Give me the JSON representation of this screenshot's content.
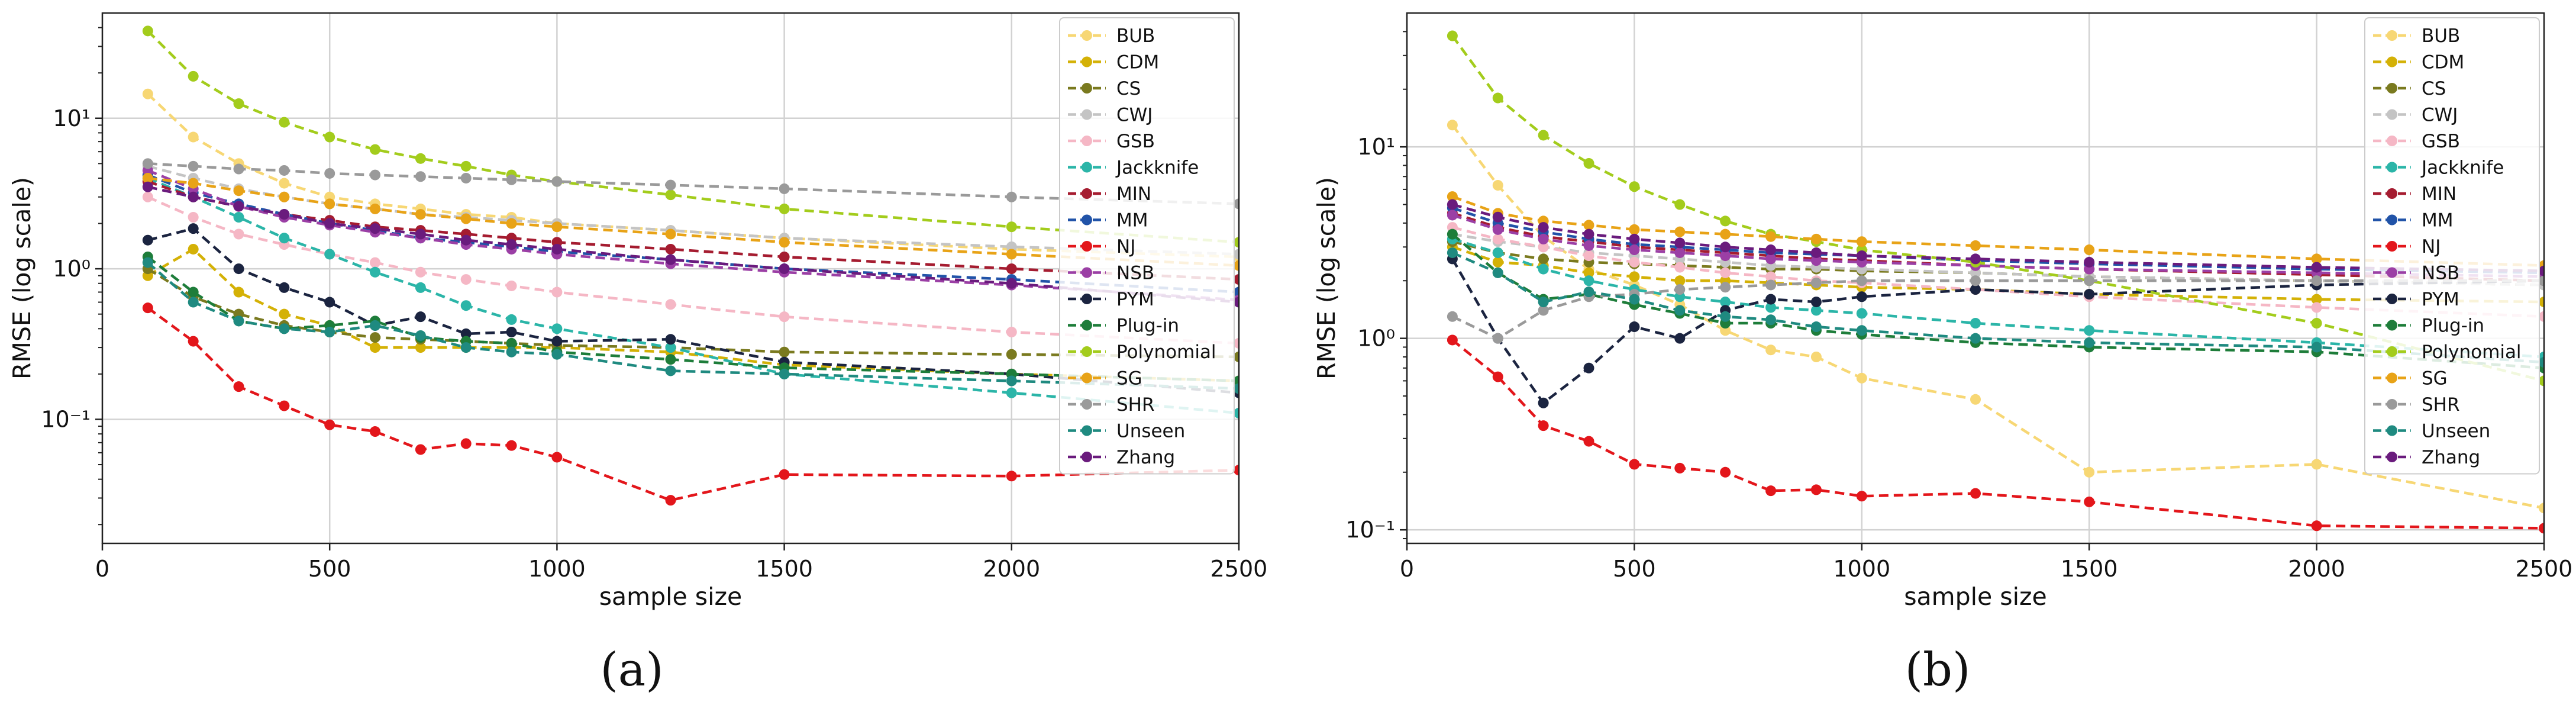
{
  "figure": {
    "caption_a": "(a)",
    "caption_b": "(b)"
  },
  "chart_data": [
    {
      "panel": "(a)",
      "type": "line",
      "xlabel": "sample size",
      "ylabel": "RMSE (log scale)",
      "yscale": "log",
      "xlim": [
        0,
        2500
      ],
      "ylim": [
        0.015,
        50
      ],
      "xticks": [
        0,
        500,
        1000,
        1500,
        2000,
        2500
      ],
      "xtick_labels": [
        "0",
        "500",
        "1000",
        "1500",
        "2000",
        "2500"
      ],
      "yticks": [
        0.1,
        1,
        10
      ],
      "ytick_labels": [
        "10⁻¹",
        "10⁰",
        "10¹"
      ],
      "grid": true,
      "legend": "top-right",
      "x": [
        100,
        200,
        300,
        400,
        500,
        600,
        700,
        800,
        900,
        1000,
        1250,
        1500,
        2000,
        2500
      ],
      "series": [
        {
          "name": "BUB",
          "color": "#f7d774",
          "values": [
            14.5,
            7.5,
            5.0,
            3.7,
            3.0,
            2.7,
            2.5,
            2.3,
            2.2,
            2.0,
            1.8,
            1.6,
            1.35,
            1.2
          ]
        },
        {
          "name": "CDM",
          "color": "#d4b106",
          "values": [
            0.9,
            1.35,
            0.7,
            0.5,
            0.42,
            0.3,
            0.3,
            0.3,
            0.3,
            0.3,
            0.28,
            0.23,
            0.2,
            0.18
          ]
        },
        {
          "name": "CS",
          "color": "#7a7a1f",
          "values": [
            1.0,
            0.65,
            0.5,
            0.42,
            0.38,
            0.35,
            0.34,
            0.33,
            0.32,
            0.31,
            0.3,
            0.28,
            0.27,
            0.26
          ]
        },
        {
          "name": "CWJ",
          "color": "#c4c4c4",
          "values": [
            4.8,
            4.0,
            3.4,
            3.0,
            2.7,
            2.5,
            2.3,
            2.2,
            2.1,
            2.0,
            1.8,
            1.6,
            1.4,
            1.25
          ]
        },
        {
          "name": "GSB",
          "color": "#f5b7c5",
          "values": [
            3.0,
            2.2,
            1.7,
            1.45,
            1.25,
            1.1,
            0.95,
            0.85,
            0.77,
            0.7,
            0.58,
            0.48,
            0.38,
            0.32
          ]
        },
        {
          "name": "Jackknife",
          "color": "#2bb5a8",
          "values": [
            4.0,
            3.0,
            2.2,
            1.6,
            1.25,
            0.95,
            0.75,
            0.57,
            0.46,
            0.4,
            0.3,
            0.2,
            0.15,
            0.11
          ]
        },
        {
          "name": "MIN",
          "color": "#a51c30",
          "values": [
            3.8,
            3.0,
            2.6,
            2.3,
            2.1,
            1.9,
            1.8,
            1.7,
            1.6,
            1.5,
            1.35,
            1.2,
            1.0,
            0.85
          ]
        },
        {
          "name": "MM",
          "color": "#2153a8",
          "values": [
            4.2,
            3.2,
            2.7,
            2.3,
            2.0,
            1.8,
            1.6,
            1.5,
            1.4,
            1.3,
            1.15,
            1.0,
            0.85,
            0.7
          ]
        },
        {
          "name": "NJ",
          "color": "#e3161b",
          "values": [
            0.55,
            0.33,
            0.165,
            0.123,
            0.092,
            0.083,
            0.063,
            0.069,
            0.067,
            0.056,
            0.029,
            0.043,
            0.042,
            0.046
          ]
        },
        {
          "name": "NSB",
          "color": "#9b3fa5",
          "values": [
            4.5,
            3.4,
            2.6,
            2.2,
            1.95,
            1.75,
            1.6,
            1.45,
            1.35,
            1.25,
            1.08,
            0.95,
            0.78,
            0.62
          ]
        },
        {
          "name": "PYM",
          "color": "#1b2440",
          "values": [
            1.55,
            1.85,
            1.0,
            0.75,
            0.6,
            0.42,
            0.48,
            0.37,
            0.38,
            0.33,
            0.34,
            0.24,
            0.2,
            0.15
          ]
        },
        {
          "name": "Plug-in",
          "color": "#1e7d3a",
          "values": [
            1.2,
            0.7,
            0.45,
            0.4,
            0.42,
            0.45,
            0.35,
            0.33,
            0.32,
            0.28,
            0.25,
            0.22,
            0.2,
            0.18
          ]
        },
        {
          "name": "Polynomial",
          "color": "#a3cc1c",
          "values": [
            38.0,
            19.0,
            12.5,
            9.4,
            7.5,
            6.2,
            5.4,
            4.8,
            4.2,
            3.8,
            3.1,
            2.5,
            1.9,
            1.5
          ]
        },
        {
          "name": "SG",
          "color": "#e8a317",
          "values": [
            4.0,
            3.7,
            3.3,
            3.0,
            2.7,
            2.5,
            2.3,
            2.15,
            2.0,
            1.9,
            1.7,
            1.5,
            1.25,
            1.05
          ]
        },
        {
          "name": "SHR",
          "color": "#9a9a9a",
          "values": [
            5.0,
            4.8,
            4.6,
            4.5,
            4.3,
            4.2,
            4.1,
            4.0,
            3.9,
            3.8,
            3.6,
            3.4,
            3.0,
            2.7
          ]
        },
        {
          "name": "Unseen",
          "color": "#1f8a80",
          "values": [
            1.1,
            0.6,
            0.45,
            0.4,
            0.38,
            0.42,
            0.36,
            0.3,
            0.28,
            0.27,
            0.21,
            0.2,
            0.18,
            0.16
          ]
        },
        {
          "name": "Zhang",
          "color": "#6a1b7d",
          "values": [
            3.5,
            3.0,
            2.6,
            2.3,
            2.0,
            1.85,
            1.7,
            1.55,
            1.45,
            1.35,
            1.15,
            1.0,
            0.8,
            0.6
          ]
        }
      ]
    },
    {
      "panel": "(b)",
      "type": "line",
      "xlabel": "sample size",
      "ylabel": "RMSE (log scale)",
      "yscale": "log",
      "xlim": [
        0,
        2500
      ],
      "ylim": [
        0.085,
        50
      ],
      "xticks": [
        0,
        500,
        1000,
        1500,
        2000,
        2500
      ],
      "xtick_labels": [
        "0",
        "500",
        "1000",
        "1500",
        "2000",
        "2500"
      ],
      "yticks": [
        0.1,
        1,
        10
      ],
      "ytick_labels": [
        "10⁻¹",
        "10⁰",
        "10¹"
      ],
      "grid": true,
      "legend": "top-right",
      "x": [
        100,
        200,
        300,
        400,
        500,
        600,
        700,
        800,
        900,
        1000,
        1250,
        1500,
        2000,
        2500
      ],
      "series": [
        {
          "name": "BUB",
          "color": "#f7d774",
          "values": [
            13.0,
            6.3,
            3.4,
            2.3,
            1.9,
            1.5,
            1.1,
            0.87,
            0.8,
            0.62,
            0.48,
            0.2,
            0.22,
            0.13
          ]
        },
        {
          "name": "CDM",
          "color": "#d4b106",
          "values": [
            3.0,
            2.5,
            2.4,
            2.2,
            2.1,
            2.0,
            2.0,
            1.95,
            1.9,
            1.85,
            1.8,
            1.7,
            1.6,
            1.55
          ]
        },
        {
          "name": "CS",
          "color": "#7a7a1f",
          "values": [
            3.2,
            2.8,
            2.6,
            2.5,
            2.45,
            2.4,
            2.35,
            2.3,
            2.3,
            2.25,
            2.2,
            2.1,
            2.0,
            1.9
          ]
        },
        {
          "name": "CWJ",
          "color": "#c4c4c4",
          "values": [
            3.5,
            3.2,
            3.0,
            2.8,
            2.7,
            2.6,
            2.5,
            2.4,
            2.35,
            2.3,
            2.2,
            2.1,
            2.0,
            1.9
          ]
        },
        {
          "name": "GSB",
          "color": "#f5b7c5",
          "values": [
            3.8,
            3.3,
            3.0,
            2.7,
            2.5,
            2.35,
            2.2,
            2.1,
            2.0,
            1.95,
            1.8,
            1.65,
            1.45,
            1.3
          ]
        },
        {
          "name": "Jackknife",
          "color": "#2bb5a8",
          "values": [
            3.3,
            2.8,
            2.3,
            2.0,
            1.8,
            1.65,
            1.55,
            1.45,
            1.4,
            1.35,
            1.2,
            1.1,
            0.95,
            0.8
          ]
        },
        {
          "name": "MIN",
          "color": "#a51c30",
          "values": [
            4.5,
            3.8,
            3.4,
            3.2,
            3.0,
            2.9,
            2.8,
            2.7,
            2.6,
            2.55,
            2.4,
            2.3,
            2.15,
            2.0
          ]
        },
        {
          "name": "MM",
          "color": "#2153a8",
          "values": [
            4.8,
            4.0,
            3.6,
            3.3,
            3.1,
            3.0,
            2.9,
            2.8,
            2.75,
            2.7,
            2.55,
            2.45,
            2.3,
            2.2
          ]
        },
        {
          "name": "NJ",
          "color": "#e3161b",
          "values": [
            0.98,
            0.63,
            0.35,
            0.29,
            0.22,
            0.21,
            0.2,
            0.16,
            0.162,
            0.15,
            0.155,
            0.14,
            0.105,
            0.102
          ]
        },
        {
          "name": "NSB",
          "color": "#9b3fa5",
          "values": [
            4.4,
            3.7,
            3.3,
            3.05,
            2.9,
            2.8,
            2.7,
            2.6,
            2.55,
            2.5,
            2.4,
            2.3,
            2.2,
            2.1
          ]
        },
        {
          "name": "PYM",
          "color": "#1b2440",
          "values": [
            2.6,
            1.0,
            0.46,
            0.7,
            1.15,
            1.0,
            1.4,
            1.6,
            1.55,
            1.65,
            1.8,
            1.7,
            1.9,
            2.0
          ]
        },
        {
          "name": "Plug-in",
          "color": "#1e7d3a",
          "values": [
            3.5,
            2.2,
            1.6,
            1.7,
            1.5,
            1.35,
            1.2,
            1.2,
            1.1,
            1.05,
            0.95,
            0.9,
            0.85,
            0.7
          ]
        },
        {
          "name": "Polynomial",
          "color": "#a3cc1c",
          "values": [
            38.0,
            18.0,
            11.5,
            8.2,
            6.2,
            5.0,
            4.1,
            3.5,
            3.2,
            2.9,
            2.5,
            2.0,
            1.2,
            0.6
          ]
        },
        {
          "name": "SG",
          "color": "#e8a317",
          "values": [
            5.5,
            4.5,
            4.1,
            3.9,
            3.7,
            3.6,
            3.5,
            3.4,
            3.3,
            3.2,
            3.05,
            2.9,
            2.6,
            2.4
          ]
        },
        {
          "name": "SHR",
          "color": "#9a9a9a",
          "values": [
            1.3,
            1.0,
            1.4,
            1.65,
            1.7,
            1.8,
            1.85,
            1.9,
            1.95,
            2.0,
            2.0,
            2.0,
            2.0,
            2.0
          ]
        },
        {
          "name": "Unseen",
          "color": "#1f8a80",
          "values": [
            2.8,
            2.2,
            1.55,
            1.75,
            1.6,
            1.4,
            1.3,
            1.25,
            1.15,
            1.1,
            1.0,
            0.95,
            0.9,
            0.75
          ]
        },
        {
          "name": "Zhang",
          "color": "#6a1b7d",
          "values": [
            5.0,
            4.3,
            3.8,
            3.5,
            3.3,
            3.15,
            3.0,
            2.9,
            2.8,
            2.7,
            2.6,
            2.5,
            2.35,
            2.25
          ]
        }
      ]
    }
  ]
}
